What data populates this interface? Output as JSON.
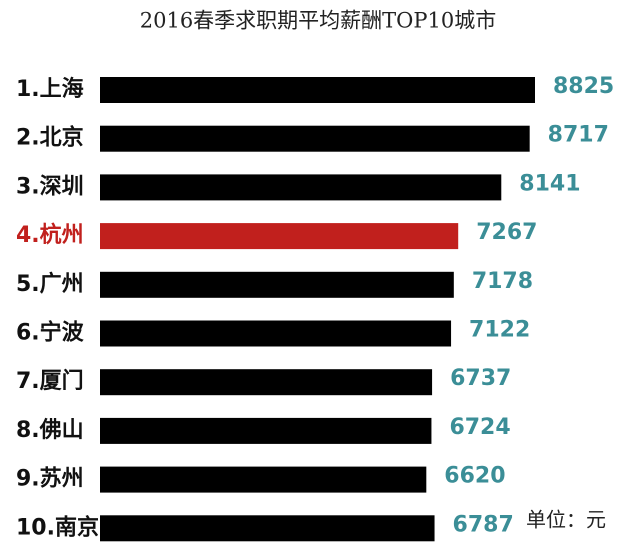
{
  "chart_data": {
    "type": "bar",
    "orientation": "horizontal",
    "title": "2016春季求职期平均薪酬TOP10城市",
    "categories": [
      "1.上海",
      "2.北京",
      "3.深圳",
      "4.杭州",
      "5.广州",
      "6.宁波",
      "7.厦门",
      "8.佛山",
      "9.苏州",
      "10.南京"
    ],
    "values": [
      8825,
      8717,
      8141,
      7267,
      7178,
      7122,
      6737,
      6724,
      6620,
      6787
    ],
    "colors": [
      "#000000",
      "#000000",
      "#000000",
      "#c1201d",
      "#000000",
      "#000000",
      "#000000",
      "#000000",
      "#000000",
      "#000000"
    ],
    "value_label_color": "#3b8e97",
    "annotation": "单位：元"
  }
}
